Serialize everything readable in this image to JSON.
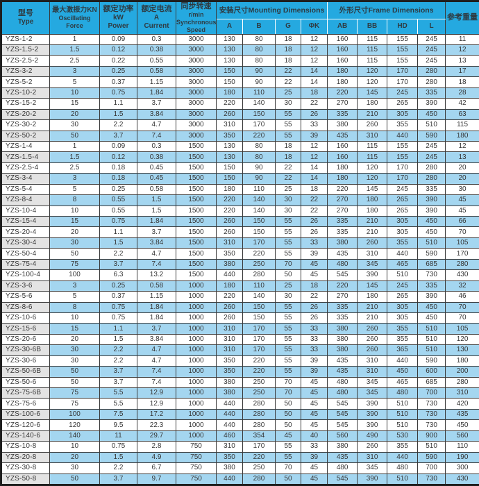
{
  "colors": {
    "header_bg": "#25a9e0",
    "row_alt_bg": "#a4d6f0",
    "type_alt_bg": "#e3e3e3",
    "border": "#3a3a3a"
  },
  "table": {
    "columns": {
      "type": {
        "zh": "型号",
        "en": "Type"
      },
      "force": {
        "zh": "最大激振力KN",
        "en1": "Oscillating",
        "en2": "Force"
      },
      "power": {
        "zh": "额定功率",
        "en1": "kW",
        "en2": "Power"
      },
      "current": {
        "zh": "额定电流",
        "en1": "A",
        "en2": "Current"
      },
      "speed": {
        "zh": "同步转速",
        "en1": "r/min",
        "en2": "Synchronous Speed"
      },
      "mounting": {
        "label": "安装尺寸Mounting Dimensions",
        "subs": [
          "A",
          "B",
          "G",
          "ΦK"
        ]
      },
      "frame": {
        "label": "外形尺寸Frame Dimensions",
        "subs": [
          "AB",
          "BB",
          "HD",
          "L"
        ]
      },
      "weight": {
        "zh": "参考重量"
      }
    },
    "rows": [
      [
        "YZS-1-2",
        "1",
        "0.09",
        "0.3",
        "3000",
        "130",
        "80",
        "18",
        "12",
        "160",
        "115",
        "155",
        "245",
        "11"
      ],
      [
        "YZS-1.5-2",
        "1.5",
        "0.12",
        "0.38",
        "3000",
        "130",
        "80",
        "18",
        "12",
        "160",
        "115",
        "155",
        "245",
        "12"
      ],
      [
        "YZS-2.5-2",
        "2.5",
        "0.22",
        "0.55",
        "3000",
        "130",
        "80",
        "18",
        "12",
        "160",
        "115",
        "155",
        "245",
        "13"
      ],
      [
        "YZS-3-2",
        "3",
        "0.25",
        "0.58",
        "3000",
        "150",
        "90",
        "22",
        "14",
        "180",
        "120",
        "170",
        "280",
        "17"
      ],
      [
        "YZS-5-2",
        "5",
        "0.37",
        "1.15",
        "3000",
        "150",
        "90",
        "22",
        "14",
        "180",
        "120",
        "170",
        "280",
        "18"
      ],
      [
        "YZS-10-2",
        "10",
        "0.75",
        "1.84",
        "3000",
        "180",
        "110",
        "25",
        "18",
        "220",
        "145",
        "245",
        "335",
        "28"
      ],
      [
        "YZS-15-2",
        "15",
        "1.1",
        "3.7",
        "3000",
        "220",
        "140",
        "30",
        "22",
        "270",
        "180",
        "265",
        "390",
        "42"
      ],
      [
        "YZS-20-2",
        "20",
        "1.5",
        "3.84",
        "3000",
        "260",
        "150",
        "55",
        "26",
        "335",
        "210",
        "305",
        "450",
        "63"
      ],
      [
        "YZS-30-2",
        "30",
        "2.2",
        "4.7",
        "3000",
        "310",
        "170",
        "55",
        "33",
        "380",
        "260",
        "355",
        "510",
        "115"
      ],
      [
        "YZS-50-2",
        "50",
        "3.7",
        "7.4",
        "3000",
        "350",
        "220",
        "55",
        "39",
        "435",
        "310",
        "440",
        "590",
        "180"
      ],
      [
        "YZS-1-4",
        "1",
        "0.09",
        "0.3",
        "1500",
        "130",
        "80",
        "18",
        "12",
        "160",
        "115",
        "155",
        "245",
        "12"
      ],
      [
        "YZS-1.5-4",
        "1.5",
        "0.12",
        "0.38",
        "1500",
        "130",
        "80",
        "18",
        "12",
        "160",
        "115",
        "155",
        "245",
        "13"
      ],
      [
        "YZS-2.5-4",
        "2.5",
        "0.18",
        "0.45",
        "1500",
        "150",
        "90",
        "22",
        "14",
        "180",
        "120",
        "170",
        "280",
        "20"
      ],
      [
        "YZS-3-4",
        "3",
        "0.18",
        "0.45",
        "1500",
        "150",
        "90",
        "22",
        "14",
        "180",
        "120",
        "170",
        "280",
        "20"
      ],
      [
        "YZS-5-4",
        "5",
        "0.25",
        "0.58",
        "1500",
        "180",
        "110",
        "25",
        "18",
        "220",
        "145",
        "245",
        "335",
        "30"
      ],
      [
        "YZS-8-4",
        "8",
        "0.55",
        "1.5",
        "1500",
        "220",
        "140",
        "30",
        "22",
        "270",
        "180",
        "265",
        "390",
        "45"
      ],
      [
        "YZS-10-4",
        "10",
        "0.55",
        "1.5",
        "1500",
        "220",
        "140",
        "30",
        "22",
        "270",
        "180",
        "265",
        "390",
        "45"
      ],
      [
        "YZS-15-4",
        "15",
        "0.75",
        "1.84",
        "1500",
        "260",
        "150",
        "55",
        "26",
        "335",
        "210",
        "305",
        "450",
        "66"
      ],
      [
        "YZS-20-4",
        "20",
        "1.1",
        "3.7",
        "1500",
        "260",
        "150",
        "55",
        "26",
        "335",
        "210",
        "305",
        "450",
        "70"
      ],
      [
        "YZS-30-4",
        "30",
        "1.5",
        "3.84",
        "1500",
        "310",
        "170",
        "55",
        "33",
        "380",
        "260",
        "355",
        "510",
        "105"
      ],
      [
        "YZS-50-4",
        "50",
        "2.2",
        "4.7",
        "1500",
        "350",
        "220",
        "55",
        "39",
        "435",
        "310",
        "440",
        "590",
        "170"
      ],
      [
        "YZS-75-4",
        "75",
        "3.7",
        "7.4",
        "1500",
        "380",
        "250",
        "70",
        "45",
        "480",
        "345",
        "465",
        "685",
        "280"
      ],
      [
        "YZS-100-4",
        "100",
        "6.3",
        "13.2",
        "1500",
        "440",
        "280",
        "50",
        "45",
        "545",
        "390",
        "510",
        "730",
        "430"
      ],
      [
        "YZS-3-6",
        "3",
        "0.25",
        "0.58",
        "1000",
        "180",
        "110",
        "25",
        "18",
        "220",
        "145",
        "245",
        "335",
        "32"
      ],
      [
        "YZS-5-6",
        "5",
        "0.37",
        "1.15",
        "1000",
        "220",
        "140",
        "30",
        "22",
        "270",
        "180",
        "265",
        "390",
        "46"
      ],
      [
        "YZS-8-6",
        "8",
        "0.75",
        "1.84",
        "1000",
        "260",
        "150",
        "55",
        "26",
        "335",
        "210",
        "305",
        "450",
        "70"
      ],
      [
        "YZS-10-6",
        "10",
        "0.75",
        "1.84",
        "1000",
        "260",
        "150",
        "55",
        "26",
        "335",
        "210",
        "305",
        "450",
        "70"
      ],
      [
        "YZS-15-6",
        "15",
        "1.1",
        "3.7",
        "1000",
        "310",
        "170",
        "55",
        "33",
        "380",
        "260",
        "355",
        "510",
        "105"
      ],
      [
        "YZS-20-6",
        "20",
        "1.5",
        "3.84",
        "1000",
        "310",
        "170",
        "55",
        "33",
        "380",
        "260",
        "355",
        "510",
        "120"
      ],
      [
        "YZS-30-6B",
        "30",
        "2.2",
        "4.7",
        "1000",
        "310",
        "170",
        "55",
        "33",
        "380",
        "260",
        "365",
        "510",
        "130"
      ],
      [
        "YZS-30-6",
        "30",
        "2.2",
        "4.7",
        "1000",
        "350",
        "220",
        "55",
        "39",
        "435",
        "310",
        "440",
        "590",
        "180"
      ],
      [
        "YZS-50-6B",
        "50",
        "3.7",
        "7.4",
        "1000",
        "350",
        "220",
        "55",
        "39",
        "435",
        "310",
        "450",
        "600",
        "200"
      ],
      [
        "YZS-50-6",
        "50",
        "3.7",
        "7.4",
        "1000",
        "380",
        "250",
        "70",
        "45",
        "480",
        "345",
        "465",
        "685",
        "280"
      ],
      [
        "YZS-75-6B",
        "75",
        "5.5",
        "12.9",
        "1000",
        "380",
        "250",
        "70",
        "45",
        "480",
        "345",
        "480",
        "700",
        "310"
      ],
      [
        "YZS-75-6",
        "75",
        "5.5",
        "12.9",
        "1000",
        "440",
        "280",
        "50",
        "45",
        "545",
        "390",
        "510",
        "730",
        "420"
      ],
      [
        "YZS-100-6",
        "100",
        "7.5",
        "17.2",
        "1000",
        "440",
        "280",
        "50",
        "45",
        "545",
        "390",
        "510",
        "730",
        "435"
      ],
      [
        "YZS-120-6",
        "120",
        "9.5",
        "22.3",
        "1000",
        "440",
        "280",
        "50",
        "45",
        "545",
        "390",
        "510",
        "730",
        "450"
      ],
      [
        "YZS-140-6",
        "140",
        "11",
        "29.7",
        "1000",
        "460",
        "354",
        "45",
        "40",
        "560",
        "490",
        "530",
        "900",
        "560"
      ],
      [
        "YZS-10-8",
        "10",
        "0.75",
        "2.8",
        "750",
        "310",
        "170",
        "55",
        "33",
        "380",
        "260",
        "355",
        "510",
        "110"
      ],
      [
        "YZS-20-8",
        "20",
        "1.5",
        "4.9",
        "750",
        "350",
        "220",
        "55",
        "39",
        "435",
        "310",
        "440",
        "590",
        "190"
      ],
      [
        "YZS-30-8",
        "30",
        "2.2",
        "6.7",
        "750",
        "380",
        "250",
        "70",
        "45",
        "480",
        "345",
        "480",
        "700",
        "300"
      ],
      [
        "YZS-50-8",
        "50",
        "3.7",
        "9.7",
        "750",
        "440",
        "280",
        "50",
        "45",
        "545",
        "390",
        "510",
        "730",
        "430"
      ]
    ]
  }
}
